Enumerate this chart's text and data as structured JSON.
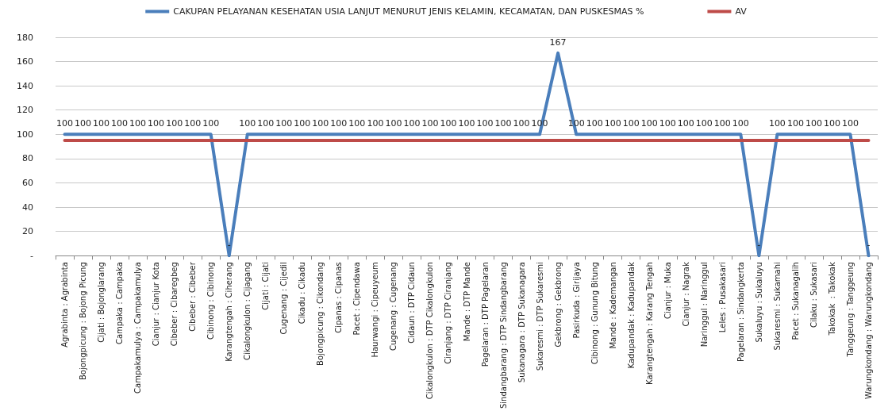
{
  "chart_data": {
    "type": "line",
    "categories": [
      "Agrabinta : Agrabinta",
      "Bojongpicung : Bojong Picung",
      "Cijati : Bojonglarang",
      "Campaka : Campaka",
      "Campakamulya : Campakamulya",
      "Cianjur : Cianjur Kota",
      "Cibeber : Cibaregbeg",
      "Cibeber : Cibeber",
      "Cibinong : Cibinong",
      "Karangtengah : Ciherang",
      "Cikalongkulon : Cijagang",
      "Cijati : Cijati",
      "Cugenang : Cijedil",
      "Cikadu : Cikadu",
      "Bojongpicung : Cikondang",
      "Cipanas : Cipanas",
      "Pacet : Cipendawa",
      "Haurwangi : Cipeuyeum",
      "Cugenang : Cugenang",
      "Cidaun : DTP Cidaun",
      "Cikalongkulon : DTP Cikalongkulon",
      "Ciranjang : DTP Ciranjang",
      "Mande : DTP Mande",
      "Pagelaran : DTP Pagelaran",
      "Sindangbarang : DTP Sindangbarang",
      "Sukanagara : DTP Sukanagara",
      "Sukaresmi : DTP Sukaresmi",
      "Gekbrong : Gekbrong",
      "Pasirkuda : Girijaya",
      "Cibinong : Gunung Bitung",
      "Mande : Kademangan",
      "Kadupandak : Kadupandak",
      "Karangtengah : Karang Tengah",
      "Cianjur : Muka",
      "Cianjur : Nagrak",
      "Naringgul : Naringgul",
      "Leles : Pusakasari",
      "Pagelaran : Sindangkerta",
      "Sukaluyu : Sukaluyu",
      "Sukaresmi : Sukamahi",
      "Pacet : Sukanagalih",
      "Cilaku : Sukasari",
      "Takokak  : Takokak",
      "Tanggeung : Tanggeung",
      "Warungkondang : Warungkondang"
    ],
    "series": [
      {
        "name": "CAKUPAN PELAYANAN KESEHATAN USIA LANJUT MENURUT JENIS KELAMIN, KECAMATAN, DAN PUSKESMAS %",
        "color": "#4a7ebb",
        "values": [
          100,
          100,
          100,
          100,
          100,
          100,
          100,
          100,
          100,
          0,
          100,
          100,
          100,
          100,
          100,
          100,
          100,
          100,
          100,
          100,
          100,
          100,
          100,
          100,
          100,
          100,
          100,
          167,
          100,
          100,
          100,
          100,
          100,
          100,
          100,
          100,
          100,
          100,
          0,
          100,
          100,
          100,
          100,
          100,
          0
        ],
        "value_labels": [
          "100",
          "100",
          "100",
          "100",
          "100",
          "100",
          "100",
          "100",
          "100",
          "-",
          "100",
          "100",
          "100",
          "100",
          "100",
          "100",
          "100",
          "100",
          "100",
          "100",
          "100",
          "100",
          "100",
          "100",
          "100",
          "100",
          "100",
          "167",
          "100",
          "100",
          "100",
          "100",
          "100",
          "100",
          "100",
          "100",
          "100",
          "100",
          "-",
          "100",
          "100",
          "100",
          "100",
          "100",
          "-"
        ]
      },
      {
        "name": "AV",
        "color": "#be4b48",
        "values": [
          95,
          95,
          95,
          95,
          95,
          95,
          95,
          95,
          95,
          95,
          95,
          95,
          95,
          95,
          95,
          95,
          95,
          95,
          95,
          95,
          95,
          95,
          95,
          95,
          95,
          95,
          95,
          95,
          95,
          95,
          95,
          95,
          95,
          95,
          95,
          95,
          95,
          95,
          95,
          95,
          95,
          95,
          95,
          95,
          95
        ]
      }
    ],
    "ylim": [
      0,
      180
    ],
    "yticks": [
      {
        "value": 0,
        "label": "-"
      },
      20,
      40,
      60,
      80,
      100,
      120,
      140,
      160,
      180
    ],
    "grid": "y",
    "legend": "top",
    "marker": "none",
    "line_style": "solid"
  }
}
